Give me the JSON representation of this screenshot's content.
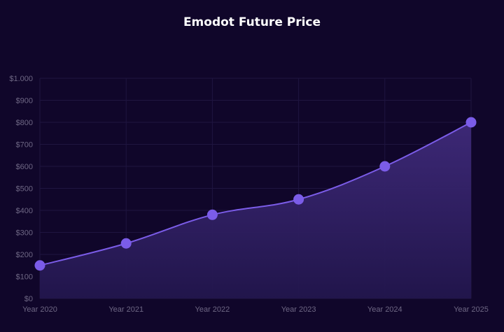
{
  "chart_data": {
    "type": "area",
    "title": "Emodot Future Price",
    "xlabel": "",
    "ylabel": "",
    "categories": [
      "Year 2020",
      "Year 2021",
      "Year 2022",
      "Year 2023",
      "Year 2024",
      "Year 2025"
    ],
    "series": [
      {
        "name": "Price",
        "values": [
          150,
          250,
          380,
          450,
          600,
          800
        ],
        "color": "#7b5ce8"
      }
    ],
    "ylim": [
      0,
      1000
    ],
    "yticks": [
      0,
      100,
      200,
      300,
      400,
      500,
      600,
      700,
      800,
      900,
      1000
    ],
    "ytick_labels": [
      "$0",
      "$100",
      "$200",
      "$300",
      "$400",
      "$500",
      "$600",
      "$700",
      "$800",
      "$900",
      "$1.000"
    ],
    "grid": true,
    "legend": "none"
  },
  "colors": {
    "background": "#10062a",
    "line": "#7b5ce8",
    "fill_top": "#3f2a7a",
    "fill_bottom": "#22164d",
    "grid": "#1f1540",
    "tick_text": "#6e6784"
  }
}
